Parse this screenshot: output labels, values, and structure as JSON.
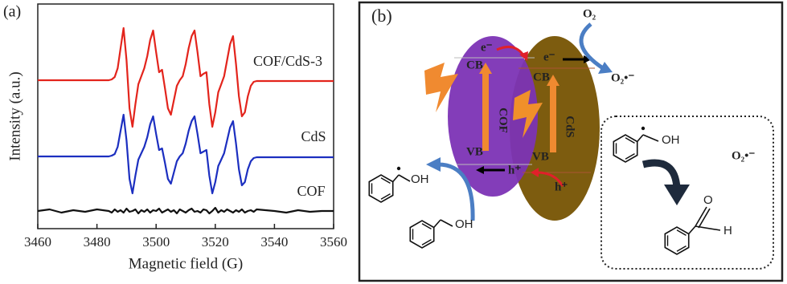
{
  "chart_data": {
    "type": "line",
    "panel_label": "(a)",
    "xlabel": "Magnetic field (G)",
    "ylabel": "Intensity (a.u.)",
    "xlim": [
      3460,
      3560
    ],
    "xticks": [
      3460,
      3480,
      3500,
      3520,
      3540,
      3560
    ],
    "ylim": [
      0,
      28
    ],
    "x": [
      3460,
      3464,
      3468,
      3472,
      3476,
      3480,
      3484,
      3485,
      3486,
      3487,
      3488,
      3489,
      3490,
      3491,
      3492,
      3493,
      3494,
      3495,
      3496,
      3497,
      3498,
      3499,
      3500,
      3501,
      3502,
      3503,
      3504,
      3505,
      3506,
      3507,
      3508,
      3509,
      3510,
      3511,
      3512,
      3513,
      3514,
      3515,
      3516,
      3517,
      3518,
      3519,
      3520,
      3521,
      3522,
      3523,
      3524,
      3525,
      3526,
      3527,
      3528,
      3529,
      3530,
      3531,
      3532,
      3533,
      3534,
      3540,
      3544,
      3548,
      3552,
      3556,
      3560
    ],
    "series": [
      {
        "name": "COF/CdS-3",
        "color": "#e3241c",
        "values": [
          18.5,
          18.5,
          18.5,
          18.5,
          18.5,
          18.5,
          18.5,
          18.6,
          18.9,
          20.0,
          22.5,
          25.0,
          21.0,
          15.0,
          12.7,
          15.5,
          18.0,
          19.0,
          20.0,
          21.5,
          23.5,
          24.7,
          22.0,
          19.5,
          19.8,
          17.5,
          15.0,
          14.2,
          16.0,
          17.8,
          18.5,
          19.0,
          20.5,
          22.5,
          24.0,
          24.7,
          22.0,
          19.0,
          19.3,
          19.5,
          15.5,
          12.7,
          14.5,
          17.0,
          18.0,
          19.0,
          21.0,
          23.0,
          24.0,
          20.5,
          16.5,
          14.0,
          14.5,
          16.5,
          17.8,
          18.3,
          18.4,
          18.4,
          18.4,
          18.4,
          18.4,
          18.4,
          18.4
        ]
      },
      {
        "name": "CdS",
        "color": "#1c2fc0",
        "values": [
          9.0,
          9.0,
          9.0,
          9.0,
          9.0,
          9.0,
          9.0,
          9.1,
          9.3,
          10.2,
          12.2,
          14.2,
          11.0,
          6.2,
          4.4,
          6.6,
          8.6,
          9.4,
          10.2,
          11.4,
          13.0,
          14.0,
          11.8,
          9.8,
          10.0,
          8.2,
          6.2,
          5.6,
          7.0,
          8.4,
          9.0,
          9.4,
          10.6,
          12.2,
          13.4,
          14.0,
          11.8,
          9.4,
          9.6,
          9.8,
          6.6,
          4.4,
          5.8,
          7.8,
          8.6,
          9.4,
          11.0,
          12.6,
          13.4,
          10.6,
          7.4,
          5.4,
          5.8,
          7.4,
          8.4,
          8.8,
          8.9,
          8.9,
          8.9,
          8.9,
          8.9,
          8.9,
          8.9
        ]
      },
      {
        "name": "COF",
        "color": "#111111",
        "values": [
          2.2,
          2.4,
          2.0,
          2.3,
          2.1,
          2.4,
          2.2,
          2.0,
          2.4,
          2.1,
          2.3,
          2.0,
          2.5,
          2.1,
          2.2,
          2.4,
          1.9,
          2.3,
          2.1,
          2.4,
          2.0,
          2.3,
          2.2,
          2.5,
          2.0,
          2.2,
          2.4,
          2.1,
          2.3,
          1.9,
          2.4,
          2.2,
          2.0,
          2.3,
          2.5,
          2.1,
          2.2,
          2.0,
          2.4,
          2.3,
          1.9,
          2.2,
          2.6,
          2.0,
          2.3,
          2.1,
          2.4,
          2.2,
          2.0,
          2.3,
          2.1,
          2.4,
          2.0,
          2.2,
          2.3,
          2.1,
          2.4,
          2.2,
          2.0,
          2.3,
          2.1,
          2.2,
          2.2
        ]
      }
    ]
  },
  "panel_b": {
    "label": "(b)",
    "oxygen": "O₂",
    "superoxide": "O₂•⁻",
    "box_superoxide": "O₂•⁻",
    "cof": {
      "name": "COF",
      "cb": "CB",
      "vb": "VB",
      "electron": "e⁻",
      "hole": "h⁺"
    },
    "cds": {
      "name": "CdS",
      "cb": "CB",
      "vb": "VB",
      "electron": "e⁻",
      "hole": "h⁺"
    },
    "radical_oh": "OH",
    "alcohol_oh": "OH",
    "box_radical_oh": "OH",
    "aldehyde_o": "O",
    "aldehyde_h": "H"
  }
}
